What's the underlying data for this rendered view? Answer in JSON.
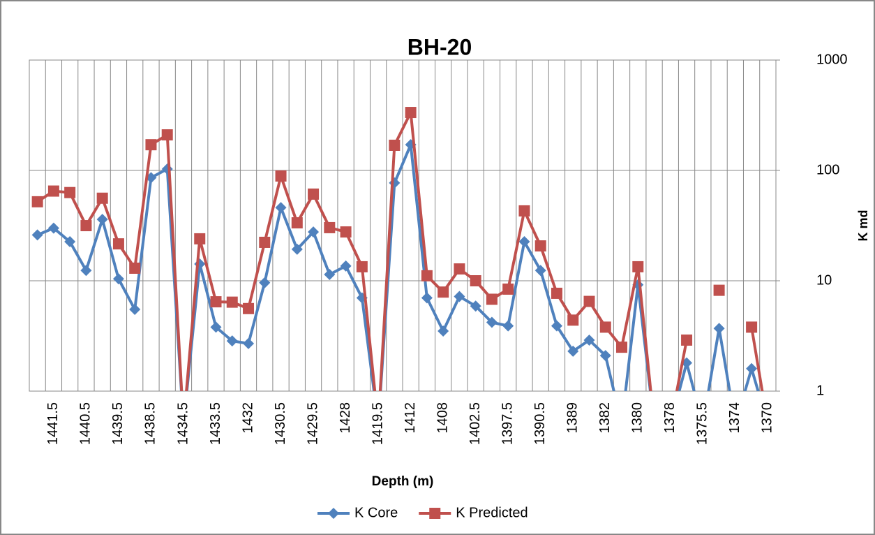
{
  "chart_data": {
    "type": "line",
    "title": "BH-20",
    "x_label": "Depth (m)",
    "y_label": "K md",
    "categories": [
      null,
      "1441.5",
      null,
      "1440.5",
      null,
      "1439.5",
      null,
      "1438.5",
      null,
      "1434.5",
      null,
      "1433.5",
      null,
      "1432",
      null,
      "1430.5",
      null,
      "1429.5",
      null,
      "1428",
      null,
      "1419.5",
      null,
      "1412",
      null,
      "1408",
      null,
      "1402.5",
      null,
      "1397.5",
      null,
      "1390.5",
      null,
      "1389",
      null,
      "1382",
      null,
      "1380",
      null,
      "1378",
      null,
      "1375.5",
      null,
      "1374",
      null,
      "1370"
    ],
    "series": [
      {
        "name": "K Core",
        "color": "#4f81bd",
        "marker": "diamond",
        "values": [
          26,
          30,
          22.6,
          12.4,
          36,
          10.4,
          5.5,
          86,
          103,
          0.5,
          14.2,
          3.8,
          2.85,
          2.7,
          9.6,
          46,
          19.3,
          27.7,
          11.4,
          13.6,
          7.0,
          0.5,
          77,
          171,
          7.0,
          3.5,
          7.2,
          5.9,
          4.2,
          3.9,
          22.6,
          12.4,
          3.9,
          2.3,
          2.9,
          2.1,
          0.5,
          9.2,
          0.5,
          0.5,
          1.8,
          0.5,
          3.7,
          0.5,
          1.6,
          0.5
        ]
      },
      {
        "name": "K Predicted",
        "color": "#c0504d",
        "marker": "square",
        "values": [
          52,
          65,
          63,
          31.6,
          56,
          21.6,
          13,
          171,
          210,
          0.5,
          24,
          6.45,
          6.4,
          5.6,
          22.3,
          89,
          33.5,
          61,
          30.3,
          27.7,
          13.4,
          0.5,
          169,
          335,
          11.1,
          7.9,
          12.8,
          10,
          6.8,
          8.4,
          43,
          20.7,
          7.7,
          4.4,
          6.5,
          3.8,
          2.5,
          13.4,
          0.5,
          0.5,
          2.9,
          null,
          8.2,
          null,
          3.8,
          0.5
        ]
      }
    ],
    "ylim": [
      1,
      1000
    ],
    "yticks": [
      1,
      10,
      100,
      1000
    ],
    "y_scale": "log",
    "y_axis_side": "right",
    "grid": true,
    "legend": "bottom"
  }
}
